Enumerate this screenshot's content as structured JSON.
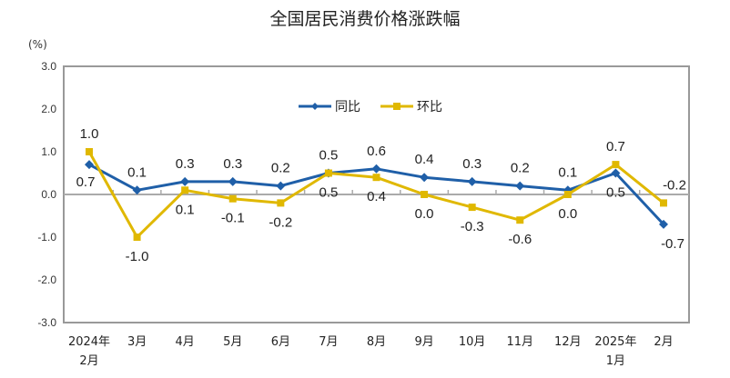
{
  "chart_data": {
    "type": "line",
    "title": "全国居民消费价格涨跌幅",
    "ylabel": "(%)",
    "xlabel": "",
    "ylim": [
      -3.0,
      3.0
    ],
    "yticks": [
      "3.0",
      "2.0",
      "1.0",
      "0.0",
      "-1.0",
      "-2.0",
      "-3.0"
    ],
    "grid": false,
    "legend_position": "top-center",
    "categories": [
      [
        "2024年",
        "2月"
      ],
      [
        "3月"
      ],
      [
        "4月"
      ],
      [
        "5月"
      ],
      [
        "6月"
      ],
      [
        "7月"
      ],
      [
        "8月"
      ],
      [
        "9月"
      ],
      [
        "10月"
      ],
      [
        "11月"
      ],
      [
        "12月"
      ],
      [
        "2025年",
        "1月"
      ],
      [
        "2月"
      ]
    ],
    "series": [
      {
        "name": "同比",
        "color": "#1f5fa8",
        "marker": "diamond",
        "values": [
          0.7,
          0.1,
          0.3,
          0.3,
          0.2,
          0.5,
          0.6,
          0.4,
          0.3,
          0.2,
          0.1,
          0.5,
          -0.7
        ]
      },
      {
        "name": "环比",
        "color": "#e0b800",
        "marker": "square",
        "values": [
          1.0,
          -1.0,
          0.1,
          -0.1,
          -0.2,
          0.5,
          0.4,
          0.0,
          -0.3,
          -0.6,
          0.0,
          0.7,
          -0.2
        ]
      }
    ]
  }
}
